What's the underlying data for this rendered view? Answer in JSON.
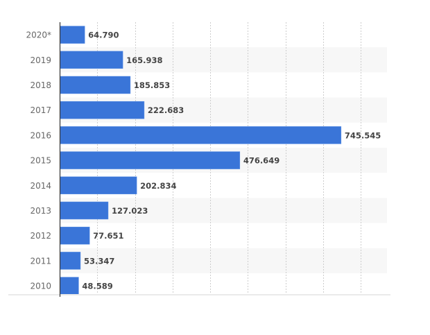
{
  "chart_data": {
    "type": "bar",
    "orientation": "horizontal",
    "title": "",
    "xlabel": "",
    "ylabel": "",
    "categories": [
      "2020*",
      "2019",
      "2018",
      "2017",
      "2016",
      "2015",
      "2014",
      "2013",
      "2012",
      "2011",
      "2010"
    ],
    "values": [
      64.79,
      165.938,
      185.853,
      222.683,
      745.545,
      476.649,
      202.834,
      127.023,
      77.651,
      53.347,
      48.589
    ],
    "value_labels": [
      "64.790",
      "165.938",
      "185.853",
      "222.683",
      "745.545",
      "476.649",
      "202.834",
      "127.023",
      "77.651",
      "53.347",
      "48.589"
    ],
    "xlim": [
      0,
      870
    ],
    "grid_step": 100,
    "grid": true,
    "bar_color": "#3a75d8",
    "stripe_color": "#f7f7f7"
  }
}
